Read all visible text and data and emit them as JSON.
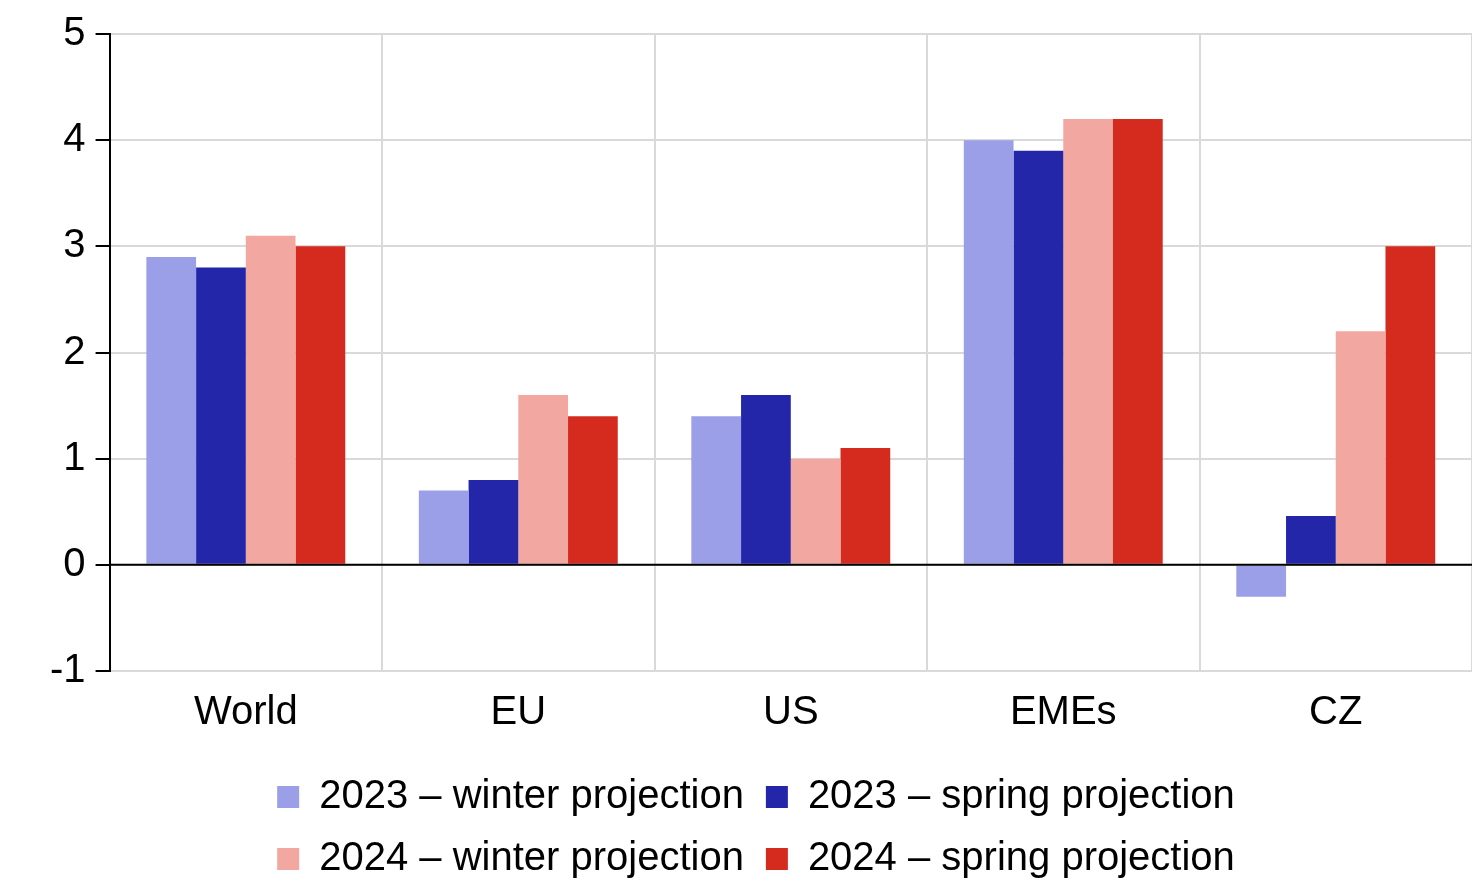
{
  "chart_data": {
    "type": "bar",
    "categories": [
      "World",
      "EU",
      "US",
      "EMEs",
      "CZ"
    ],
    "series": [
      {
        "name": "2023 – winter projection",
        "color": "#9b9fe8",
        "values": [
          2.9,
          0.7,
          1.4,
          4.0,
          -0.3
        ]
      },
      {
        "name": "2023 – spring projection",
        "color": "#2326a8",
        "values": [
          2.8,
          0.8,
          1.6,
          3.9,
          0.46
        ]
      },
      {
        "name": "2024 – winter projection",
        "color": "#f2a7a0",
        "values": [
          3.1,
          1.6,
          1.0,
          4.2,
          2.2
        ]
      },
      {
        "name": "2024 – spring projection",
        "color": "#d52b1e",
        "values": [
          3.0,
          1.4,
          1.1,
          4.2,
          3.0
        ]
      }
    ],
    "ylim": [
      -1,
      5
    ],
    "yticks": [
      -1,
      0,
      1,
      2,
      3,
      4,
      5
    ],
    "grid": true,
    "legend": "bottom"
  }
}
